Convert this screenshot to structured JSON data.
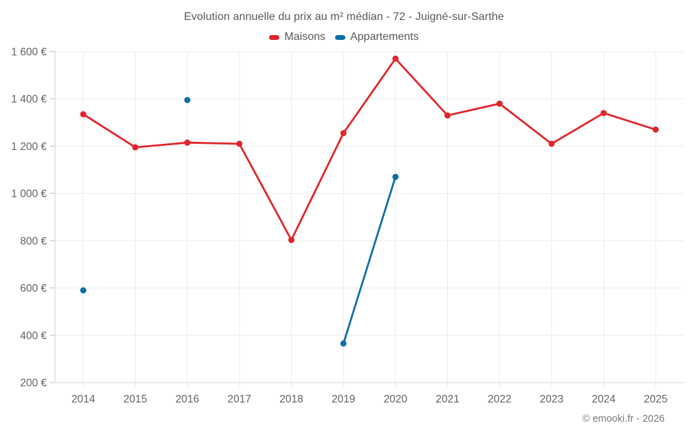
{
  "header": {
    "title": "Evolution annuelle du prix au m² médian - 72 - Juigné-sur-Sarthe"
  },
  "legend": {
    "items": [
      {
        "label": "Maisons",
        "color": "#e0252b"
      },
      {
        "label": "Appartements",
        "color": "#0e6ea8"
      }
    ]
  },
  "watermark": "© emooki.fr - 2026",
  "chart_data": {
    "type": "line",
    "title": "Evolution annuelle du prix au m² médian - 72 - Juigné-sur-Sarthe",
    "categories": [
      "2014",
      "2015",
      "2016",
      "2017",
      "2018",
      "2019",
      "2020",
      "2021",
      "2022",
      "2023",
      "2024",
      "2025"
    ],
    "series": [
      {
        "name": "Maisons",
        "color": "#e0252b",
        "values": [
          1335,
          1195,
          1215,
          1210,
          803,
          1255,
          1570,
          1330,
          1380,
          1210,
          1340,
          1270
        ]
      },
      {
        "name": "Appartements",
        "color": "#0e6ea8",
        "values": [
          590,
          null,
          1395,
          null,
          null,
          365,
          1070,
          null,
          null,
          null,
          null,
          null
        ]
      }
    ],
    "xlabel": "",
    "ylabel": "",
    "ylim": [
      200,
      1600
    ],
    "y_ticks": [
      200,
      400,
      600,
      800,
      1000,
      1200,
      1400,
      1600
    ],
    "y_tick_labels": [
      "200 €",
      "400 €",
      "600 €",
      "800 €",
      "1 000 €",
      "1 200 €",
      "1 400 €",
      "1 600 €"
    ],
    "grid": true,
    "legend_position": "top",
    "marker_radius": 4.5,
    "line_width": 2.8
  }
}
